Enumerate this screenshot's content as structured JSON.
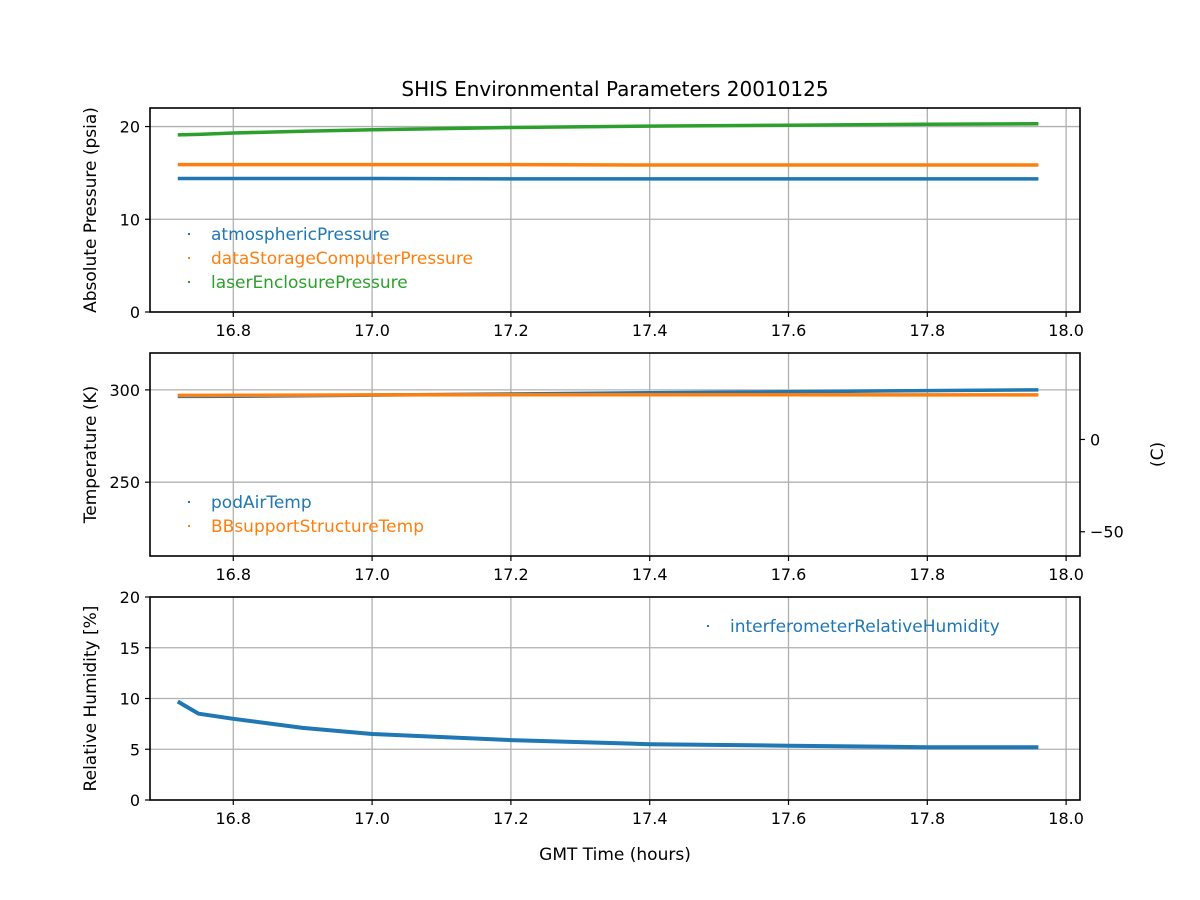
{
  "chart_data": [
    {
      "type": "scatter",
      "title": "SHIS Environmental Parameters 20010125",
      "xlabel": "",
      "ylabel": "Absolute Pressure (psia)",
      "xlim": [
        16.68,
        18.02
      ],
      "ylim": [
        0,
        22
      ],
      "xticks": [
        "16.8",
        "17.0",
        "17.2",
        "17.4",
        "17.6",
        "17.8",
        "18.0"
      ],
      "yticks": [
        "0",
        "10",
        "20"
      ],
      "ytick_values": [
        0,
        10,
        20
      ],
      "grid": true,
      "legend_position": "lower-left",
      "x": [
        16.72,
        16.75,
        16.8,
        16.9,
        17.0,
        17.2,
        17.4,
        17.6,
        17.8,
        17.96
      ],
      "series": [
        {
          "name": "atmosphericPressure",
          "color": "#1f77b4",
          "values": [
            14.4,
            14.4,
            14.4,
            14.4,
            14.4,
            14.35,
            14.35,
            14.35,
            14.35,
            14.35
          ]
        },
        {
          "name": "dataStorageComputerPressure",
          "color": "#ff7f0e",
          "values": [
            15.9,
            15.9,
            15.9,
            15.9,
            15.9,
            15.9,
            15.85,
            15.85,
            15.85,
            15.85
          ]
        },
        {
          "name": "laserEnclosurePressure",
          "color": "#2ca02c",
          "values": [
            19.1,
            19.15,
            19.3,
            19.5,
            19.65,
            19.9,
            20.05,
            20.15,
            20.25,
            20.3
          ]
        }
      ]
    },
    {
      "type": "scatter",
      "ylabel": "Temperature (K)",
      "y2label": "(C)",
      "xlim": [
        16.68,
        18.02
      ],
      "ylim": [
        210,
        320
      ],
      "xticks": [
        "16.8",
        "17.0",
        "17.2",
        "17.4",
        "17.6",
        "17.8",
        "18.0"
      ],
      "yticks": [
        "250",
        "300"
      ],
      "ytick_values": [
        250,
        300
      ],
      "y2ticks": [
        "0",
        "−50"
      ],
      "y2tick_values": [
        0,
        -50
      ],
      "grid": true,
      "legend_position": "lower-left",
      "x": [
        16.72,
        16.75,
        16.8,
        16.9,
        17.0,
        17.2,
        17.4,
        17.6,
        17.8,
        17.96
      ],
      "series": [
        {
          "name": "podAirTemp",
          "color": "#1f77b4",
          "values": [
            296.5,
            296.5,
            296.6,
            296.8,
            297.2,
            297.8,
            298.5,
            299.0,
            299.6,
            300.0
          ]
        },
        {
          "name": "BBsupportStructureTemp",
          "color": "#ff7f0e",
          "values": [
            297.0,
            297.0,
            297.1,
            297.2,
            297.3,
            297.4,
            297.4,
            297.4,
            297.3,
            297.3
          ]
        }
      ]
    },
    {
      "type": "scatter",
      "xlabel": "GMT Time (hours)",
      "ylabel": "Relative Humidity [%]",
      "xlim": [
        16.68,
        18.02
      ],
      "ylim": [
        0,
        20
      ],
      "xticks": [
        "16.8",
        "17.0",
        "17.2",
        "17.4",
        "17.6",
        "17.8",
        "18.0"
      ],
      "yticks": [
        "0",
        "5",
        "10",
        "15",
        "20"
      ],
      "ytick_values": [
        0,
        5,
        10,
        15,
        20
      ],
      "grid": true,
      "legend_position": "upper-right",
      "x": [
        16.72,
        16.73,
        16.75,
        16.8,
        16.9,
        17.0,
        17.2,
        17.4,
        17.6,
        17.8,
        17.96
      ],
      "series": [
        {
          "name": "interferometerRelativeHumidity",
          "color": "#1f77b4",
          "values": [
            9.7,
            9.3,
            8.5,
            8.0,
            7.1,
            6.5,
            5.9,
            5.5,
            5.35,
            5.2,
            5.2
          ]
        }
      ]
    }
  ]
}
